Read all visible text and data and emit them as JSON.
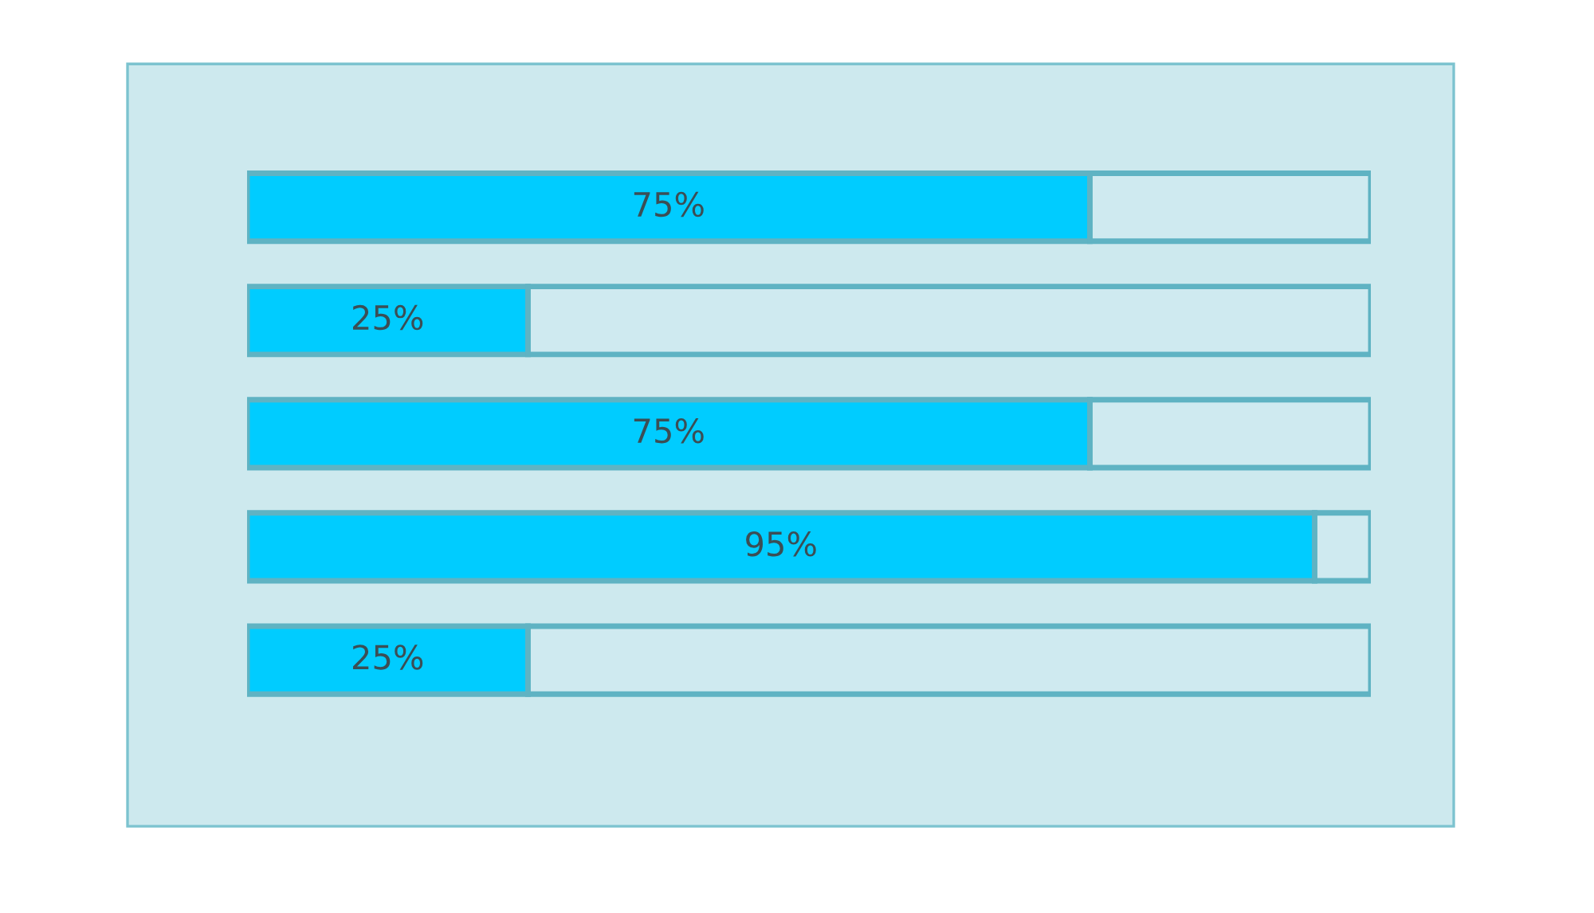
{
  "chart_data": {
    "type": "bar",
    "orientation": "horizontal",
    "stacked": true,
    "categories": [
      null,
      null,
      null,
      null,
      null
    ],
    "series": [
      {
        "color": "#00ccff",
        "values": [
          75,
          25,
          75,
          95,
          25
        ],
        "value_labels": [
          "75%",
          "25%",
          "75%",
          "95%",
          "25%"
        ]
      },
      {
        "color": "#cfeaf0",
        "values": [
          25,
          75,
          25,
          5,
          75
        ]
      }
    ],
    "xlim": [
      0,
      100
    ],
    "tick_labels": false
  }
}
